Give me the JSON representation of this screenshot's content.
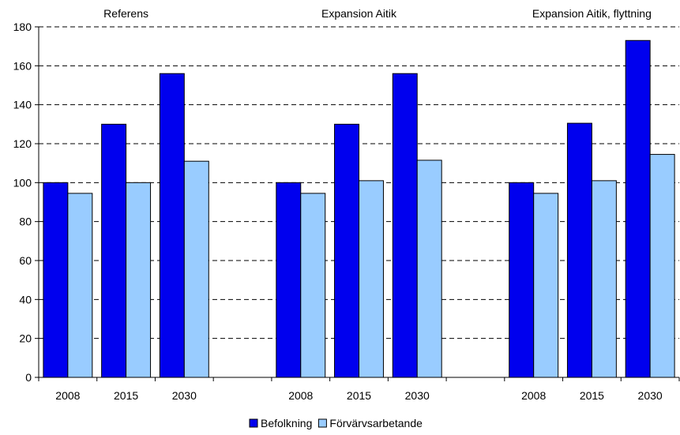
{
  "chart_data": {
    "type": "bar",
    "groups": [
      {
        "title": "Referens",
        "categories": [
          "2008",
          "2015",
          "2030"
        ]
      },
      {
        "title": "Expansion Aitik",
        "categories": [
          "2008",
          "2015",
          "2030"
        ]
      },
      {
        "title": "Expansion Aitik, flyttning",
        "categories": [
          "2008",
          "2015",
          "2030"
        ]
      }
    ],
    "series": [
      {
        "name": "Befolkning",
        "color": "#0000ee",
        "values": [
          100,
          130,
          156,
          100,
          130,
          156,
          100,
          130.5,
          173
        ]
      },
      {
        "name": "Förvärvsarbetande",
        "color": "#99ccff",
        "values": [
          94.5,
          100,
          111,
          94.5,
          101,
          111.5,
          94.5,
          101,
          114.5
        ]
      }
    ],
    "ylim": [
      0,
      180
    ],
    "yticks": [
      0,
      20,
      40,
      60,
      80,
      100,
      120,
      140,
      160,
      180
    ],
    "grid": "dashed horizontal",
    "legend": "bottom-center"
  }
}
